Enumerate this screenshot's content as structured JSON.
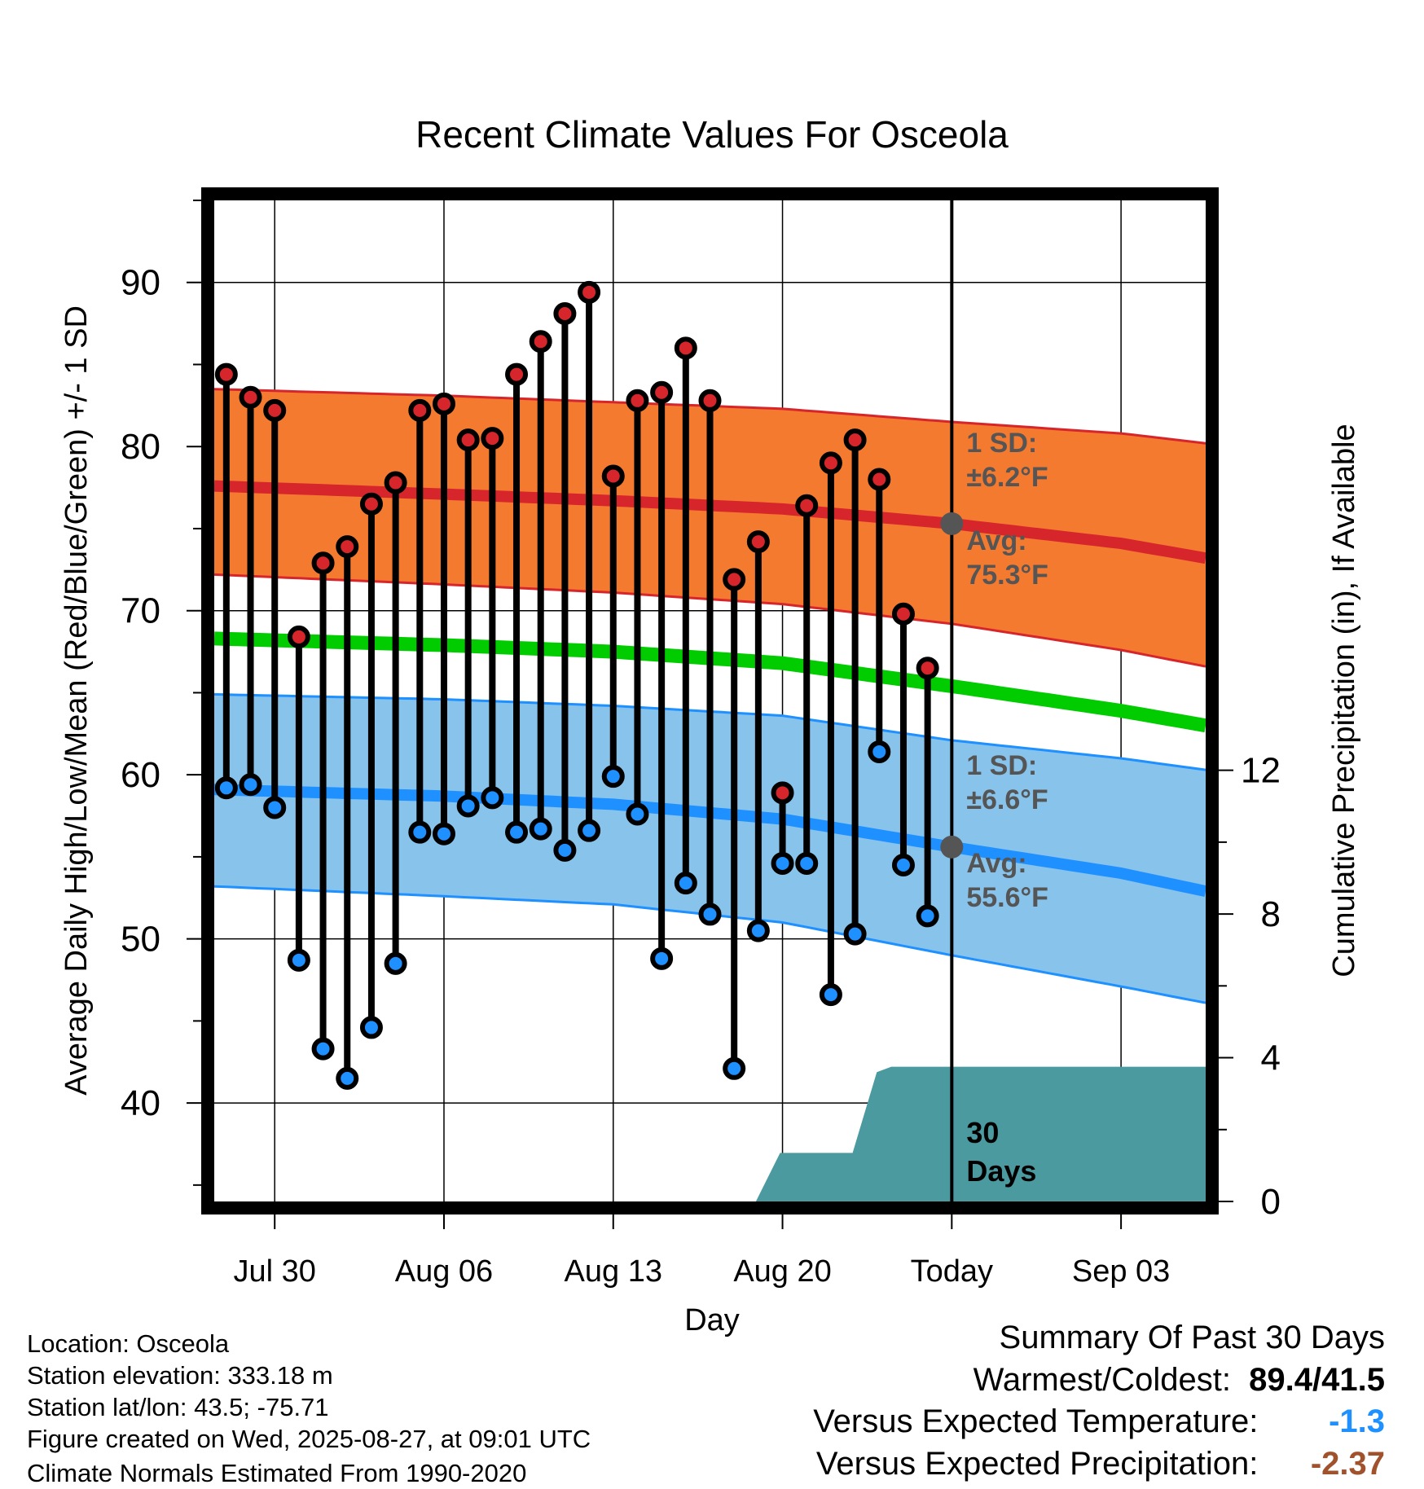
{
  "chart_data": {
    "type": "line",
    "title": "Recent Climate Values For Osceola",
    "xlabel": "Day",
    "ylabel": "Average Daily High/Low/Mean (Red/Blue/Green) +/- 1 SD",
    "y2label": "Cumulative Precipitation (in), If Available",
    "ylim": [
      34,
      95
    ],
    "y2lim": [
      0,
      27.86
    ],
    "yticks": [
      40,
      50,
      60,
      70,
      80,
      90
    ],
    "y2ticks": [
      0,
      4,
      8,
      12
    ],
    "grid": true,
    "x_day_range": [
      -30.5,
      10.5
    ],
    "xticks": [
      {
        "day": -28,
        "label": "Jul 30"
      },
      {
        "day": -21,
        "label": "Aug 06"
      },
      {
        "day": -14,
        "label": "Aug 13"
      },
      {
        "day": -7,
        "label": "Aug 20"
      },
      {
        "day": 0,
        "label": "Today"
      },
      {
        "day": 7,
        "label": "Sep 03"
      }
    ],
    "today_day": 0,
    "today_box_label": "30 Days",
    "daily_days": [
      -30,
      -29,
      -28,
      -27,
      -26,
      -25,
      -24,
      -23,
      -22,
      -21,
      -20,
      -19,
      -18,
      -17,
      -16,
      -15,
      -14,
      -13,
      -12,
      -11,
      -10,
      -9,
      -8,
      -7,
      -6,
      -5,
      -4,
      -3,
      -2,
      -1
    ],
    "daily_highs": [
      84.4,
      83.0,
      82.2,
      68.4,
      72.9,
      73.9,
      76.5,
      77.8,
      82.2,
      82.6,
      80.4,
      80.5,
      84.4,
      86.4,
      88.1,
      89.4,
      78.2,
      82.8,
      83.3,
      86.0,
      82.8,
      71.9,
      74.2,
      58.9,
      76.4,
      79.0,
      80.4,
      78.0,
      69.8,
      66.5
    ],
    "daily_lows": [
      59.2,
      59.4,
      58.0,
      48.7,
      43.3,
      41.5,
      44.6,
      48.5,
      56.5,
      56.4,
      58.1,
      58.6,
      56.5,
      56.7,
      55.4,
      56.6,
      59.9,
      57.6,
      48.8,
      53.4,
      51.5,
      42.1,
      50.5,
      54.6,
      54.6,
      46.6,
      50.3,
      61.4,
      54.5,
      51.4
    ],
    "normals_days": [
      -30.5,
      -21,
      -14,
      -7,
      0,
      7,
      10.5
    ],
    "normal_high": [
      77.6,
      77.1,
      76.7,
      76.2,
      75.3,
      74.1,
      73.2
    ],
    "normal_high_upper": [
      83.5,
      83.1,
      82.7,
      82.3,
      81.5,
      80.8,
      80.2
    ],
    "normal_high_lower": [
      72.2,
      71.6,
      71.1,
      70.4,
      69.2,
      67.6,
      66.6
    ],
    "normal_mean": [
      68.3,
      67.9,
      67.5,
      66.8,
      65.4,
      63.9,
      63.0
    ],
    "normal_low": [
      59.1,
      58.7,
      58.2,
      57.3,
      55.6,
      54.0,
      52.9
    ],
    "normal_low_upper": [
      64.9,
      64.6,
      64.2,
      63.6,
      62.1,
      61.0,
      60.3
    ],
    "normal_low_lower": [
      53.2,
      52.6,
      52.1,
      51.0,
      49.0,
      47.1,
      46.1
    ],
    "precip_days": [
      -30.5,
      -8.1,
      -7.1,
      -4.1,
      -3.1,
      -2.5,
      10.5
    ],
    "precip_cum": [
      0,
      0,
      1.35,
      1.35,
      3.6,
      3.75,
      3.75
    ],
    "high_sd_label": "1 SD:",
    "high_sd_value": "±6.2°F",
    "high_avg_label": "Avg:",
    "high_avg_value": "75.3°F",
    "low_sd_label": "1 SD:",
    "low_sd_value": "±6.6°F",
    "low_avg_label": "Avg:",
    "low_avg_value": "55.6°F",
    "colors": {
      "high_band": "#f47a30",
      "high_line": "#d7262b",
      "high_dot": "#d7262b",
      "mean_line": "#00cc00",
      "low_band": "#87c3ea",
      "low_line": "#1e90ff",
      "low_dot": "#1e90ff",
      "precip": "#4a9aa0",
      "marker_today": "#555555",
      "annotation": "#555555"
    }
  },
  "info": {
    "location": "Location: Osceola",
    "elevation": "Station elevation: 333.18 m",
    "latlon": "Station lat/lon: 43.5; -75.71",
    "created": "Figure created on Wed, 2025-08-27, at 09:01 UTC",
    "normals": "Climate Normals Estimated From 1990-2020"
  },
  "summary": {
    "title": "Summary Of Past 30 Days",
    "warmest_label": "Warmest/Coldest:",
    "warmest_value": "89.4/41.5",
    "temp_label": "Versus Expected Temperature:",
    "temp_value": "-1.3",
    "temp_color": "#1e90ff",
    "precip_label": "Versus Expected Precipitation:",
    "precip_value": "-2.37",
    "precip_color": "#a0522d"
  }
}
